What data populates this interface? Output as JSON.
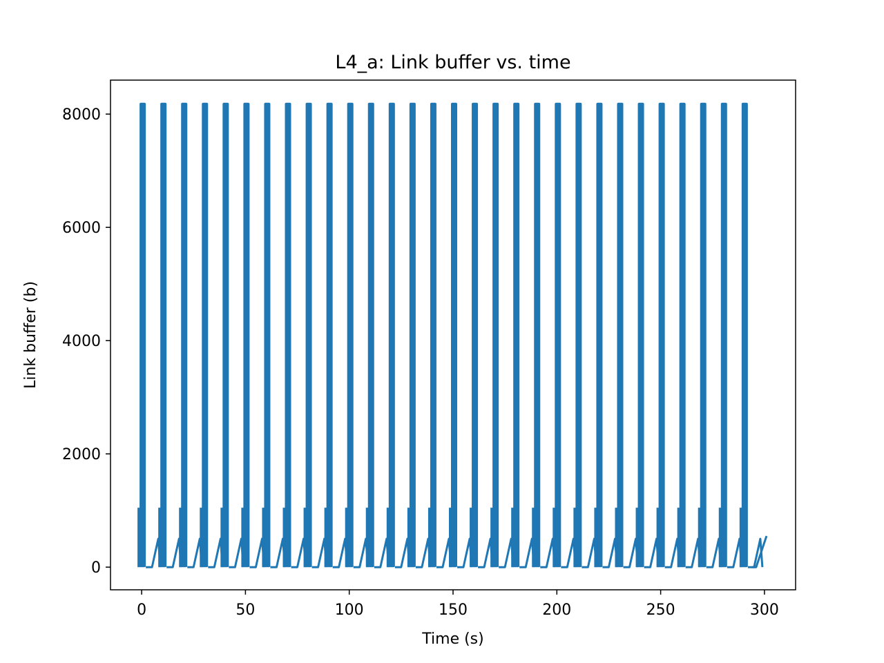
{
  "chart_data": {
    "type": "line",
    "title": "L4_a: Link buffer vs. time",
    "xlabel": "Time (s)",
    "ylabel": "Link buffer (b)",
    "xlim": [
      -15,
      315
    ],
    "ylim": [
      -400,
      8600
    ],
    "xticks": [
      0,
      50,
      100,
      150,
      200,
      250,
      300
    ],
    "yticks": [
      0,
      2000,
      4000,
      6000,
      8000
    ],
    "grid": false,
    "legend": "none",
    "series": [
      {
        "color": "#1f77b4",
        "cycle_period_s": 10,
        "cycle_count": 30,
        "cycle_start_s": -1,
        "burst": {
          "start_s": 0,
          "end_s": 3,
          "low_b": 0,
          "high_b": 8200,
          "initial_spike_b": 1050
        },
        "idle": {
          "start_s": 3,
          "end_s": 6,
          "value_b": 0
        },
        "ramp": {
          "start_s": 6,
          "end_s": 9,
          "from_b": 0,
          "to_b": 500
        },
        "tail": {
          "x": [
            294,
            296,
            301
          ],
          "y": [
            0,
            0,
            550
          ]
        }
      }
    ]
  }
}
